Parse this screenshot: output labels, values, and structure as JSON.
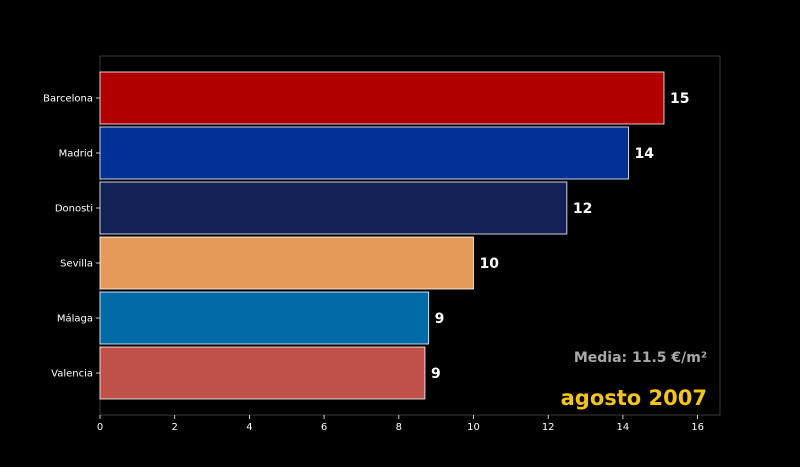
{
  "chart_data": {
    "type": "bar",
    "orientation": "horizontal",
    "categories": [
      "Barcelona",
      "Madrid",
      "Donosti",
      "Sevilla",
      "Málaga",
      "Valencia"
    ],
    "values": [
      15.1,
      14.15,
      12.5,
      10.0,
      8.8,
      8.7
    ],
    "value_labels": [
      "15",
      "14",
      "12",
      "10",
      "9",
      "9"
    ],
    "colors": [
      "#b00000",
      "#003096",
      "#132156",
      "#e49b5a",
      "#006ba6",
      "#c0504a"
    ],
    "xlim": [
      0,
      16.6
    ],
    "xticks": [
      0,
      2,
      4,
      6,
      8,
      10,
      12,
      14,
      16
    ],
    "grid": false,
    "background": "#000000",
    "annotations": {
      "media": "Media: 11.5 €/m²",
      "period": "agosto 2007"
    },
    "annotation_colors": {
      "media": "#a8a8a8",
      "period": "#f5c518"
    }
  }
}
